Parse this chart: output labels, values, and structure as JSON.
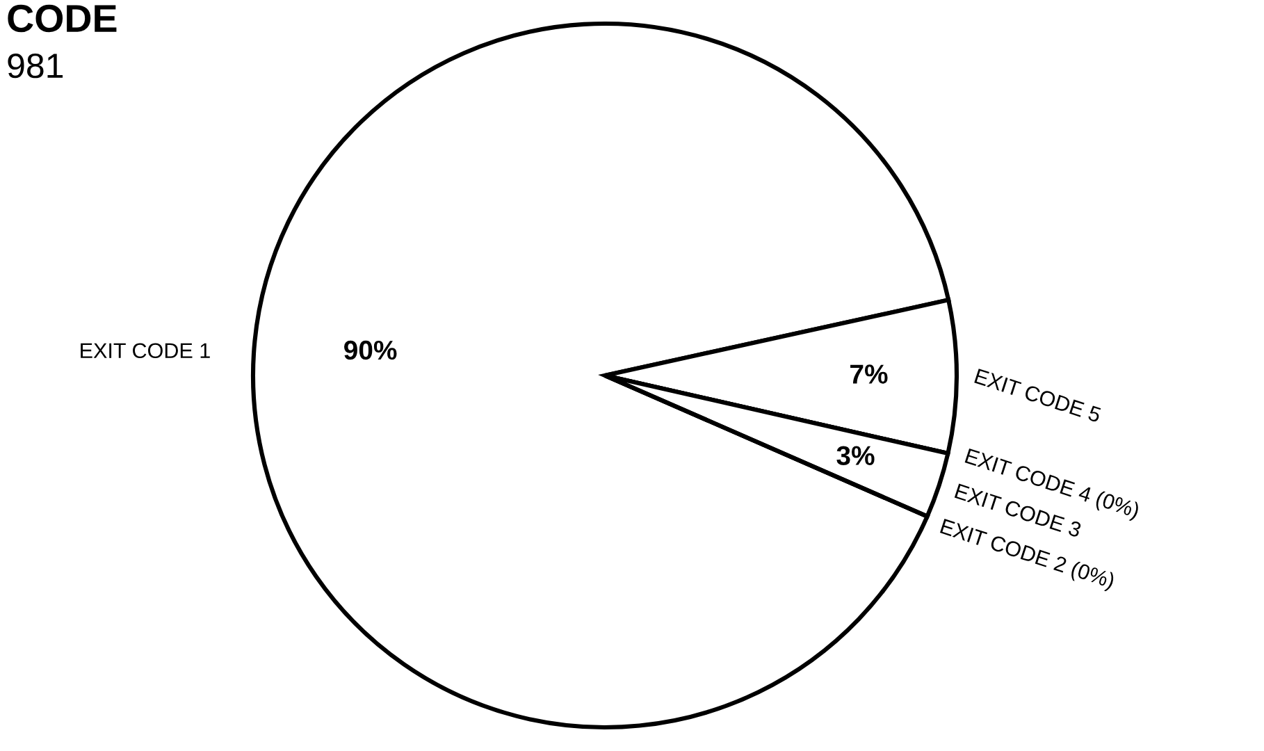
{
  "chart_data": {
    "type": "pie",
    "title": "CODE",
    "subtitle": "981",
    "categories": [
      "EXIT CODE 1",
      "EXIT CODE 5",
      "EXIT CODE 4",
      "EXIT CODE 3",
      "EXIT CODE 2"
    ],
    "values": [
      90,
      7,
      0,
      3,
      0
    ],
    "value_labels": [
      "90%",
      "7%",
      "(0%)",
      "3%",
      "(0%)"
    ],
    "colors": [
      "#ffffff",
      "#ffffff",
      "#ffffff",
      "#ffffff",
      "#ffffff"
    ],
    "legend": false
  }
}
